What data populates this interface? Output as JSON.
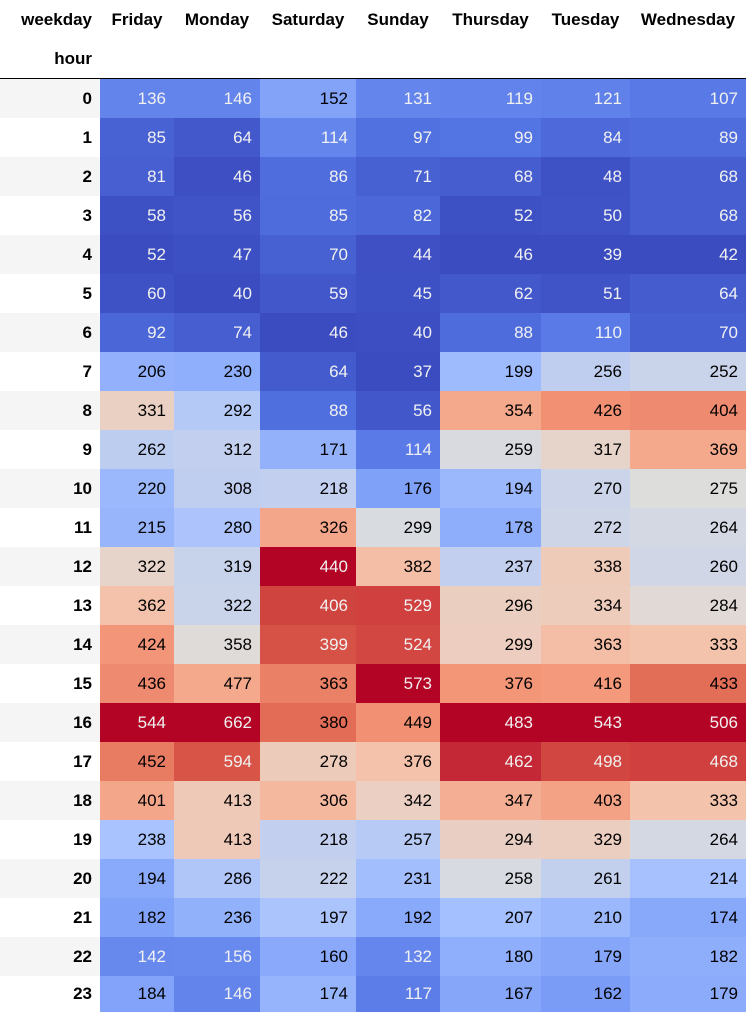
{
  "chart_data": {
    "type": "heatmap",
    "column_axis_name": "weekday",
    "row_axis_name": "hour",
    "columns": [
      "Friday",
      "Monday",
      "Saturday",
      "Sunday",
      "Thursday",
      "Tuesday",
      "Wednesday"
    ],
    "colormap": "coolwarm",
    "rows": [
      {
        "hour": "0",
        "values": [
          136,
          146,
          152,
          131,
          119,
          121,
          107
        ]
      },
      {
        "hour": "1",
        "values": [
          85,
          64,
          114,
          97,
          99,
          84,
          89
        ]
      },
      {
        "hour": "2",
        "values": [
          81,
          46,
          86,
          71,
          68,
          48,
          68
        ]
      },
      {
        "hour": "3",
        "values": [
          58,
          56,
          85,
          82,
          52,
          50,
          68
        ]
      },
      {
        "hour": "4",
        "values": [
          52,
          47,
          70,
          44,
          46,
          39,
          42
        ]
      },
      {
        "hour": "5",
        "values": [
          60,
          40,
          59,
          45,
          62,
          51,
          64
        ]
      },
      {
        "hour": "6",
        "values": [
          92,
          74,
          46,
          40,
          88,
          110,
          70
        ]
      },
      {
        "hour": "7",
        "values": [
          206,
          230,
          64,
          37,
          199,
          256,
          252
        ]
      },
      {
        "hour": "8",
        "values": [
          331,
          292,
          88,
          56,
          354,
          426,
          404
        ]
      },
      {
        "hour": "9",
        "values": [
          262,
          312,
          171,
          114,
          259,
          317,
          369
        ]
      },
      {
        "hour": "10",
        "values": [
          220,
          308,
          218,
          176,
          194,
          270,
          275
        ]
      },
      {
        "hour": "11",
        "values": [
          215,
          280,
          326,
          299,
          178,
          272,
          264
        ]
      },
      {
        "hour": "12",
        "values": [
          322,
          319,
          440,
          382,
          237,
          338,
          260
        ]
      },
      {
        "hour": "13",
        "values": [
          362,
          322,
          406,
          529,
          296,
          334,
          284
        ]
      },
      {
        "hour": "14",
        "values": [
          424,
          358,
          399,
          524,
          299,
          363,
          333
        ]
      },
      {
        "hour": "15",
        "values": [
          436,
          477,
          363,
          573,
          376,
          416,
          433
        ]
      },
      {
        "hour": "16",
        "values": [
          544,
          662,
          380,
          449,
          483,
          543,
          506
        ]
      },
      {
        "hour": "17",
        "values": [
          452,
          594,
          278,
          376,
          462,
          498,
          468
        ]
      },
      {
        "hour": "18",
        "values": [
          401,
          413,
          306,
          342,
          347,
          403,
          333
        ]
      },
      {
        "hour": "19",
        "values": [
          238,
          413,
          218,
          257,
          294,
          329,
          264
        ]
      },
      {
        "hour": "20",
        "values": [
          194,
          286,
          222,
          231,
          258,
          261,
          214
        ]
      },
      {
        "hour": "21",
        "values": [
          182,
          236,
          197,
          192,
          207,
          210,
          174
        ]
      },
      {
        "hour": "22",
        "values": [
          142,
          156,
          160,
          132,
          180,
          179,
          182
        ]
      },
      {
        "hour": "23",
        "values": [
          184,
          146,
          174,
          117,
          167,
          162,
          179
        ]
      }
    ]
  }
}
